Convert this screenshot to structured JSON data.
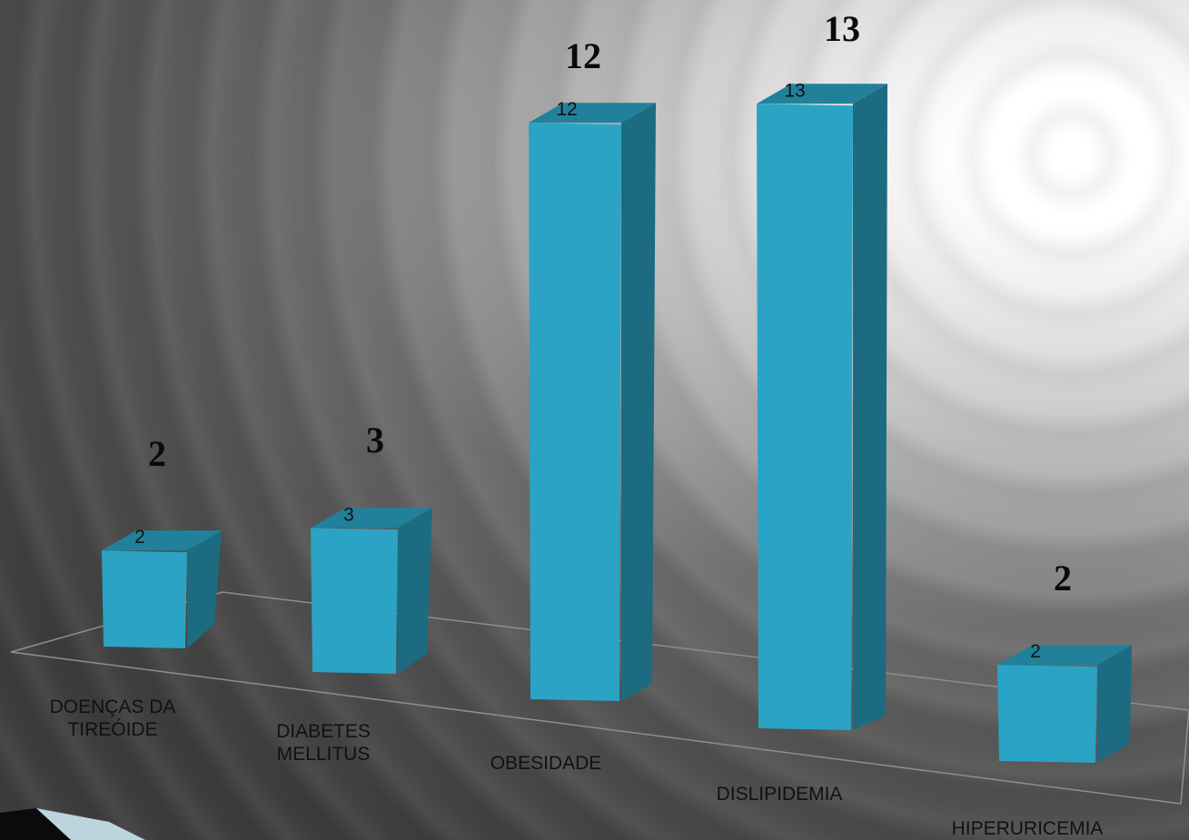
{
  "chart_data": {
    "type": "bar",
    "categories": [
      "DOENÇAS DA TIREÓIDE",
      "DIABETES MELLITUS",
      "OBESIDADE",
      "DISLIPIDEMIA",
      "HIPERURICEMIA"
    ],
    "category_lines": [
      [
        "DOENÇAS DA",
        "TIREÓIDE"
      ],
      [
        "DIABETES",
        "MELLITUS"
      ],
      [
        "OBESIDADE"
      ],
      [
        "DISLIPIDEMIA"
      ],
      [
        "HIPERURICEMIA"
      ]
    ],
    "values": [
      2,
      3,
      12,
      13,
      2
    ],
    "data_labels": [
      "2",
      "3",
      "12",
      "13",
      "2"
    ],
    "overlay_labels": [
      "2",
      "3",
      "12",
      "13",
      "2"
    ],
    "title": "",
    "xlabel": "",
    "ylabel": "",
    "ylim": [
      0,
      13
    ],
    "three_d": true,
    "grid": false,
    "legend": "none"
  },
  "colors": {
    "bar_front": "#2ba3c4",
    "bar_top": "#21819b",
    "bar_side": "#1c6b80",
    "floor_line": "#8e8e8e"
  }
}
